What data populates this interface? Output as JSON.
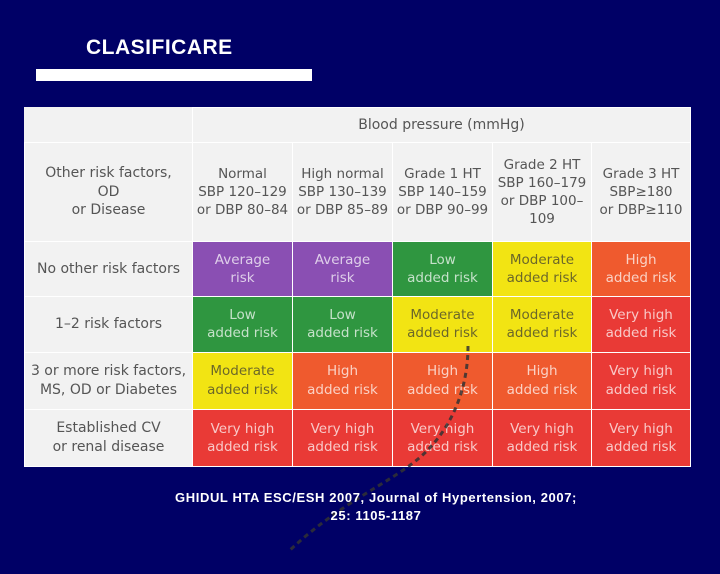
{
  "title": "CLASIFICARE",
  "table": {
    "header_label": "Blood pressure (mmHg)",
    "corner": [
      "Other risk factors,",
      "OD",
      "or Disease"
    ],
    "columns": [
      {
        "name": "Normal",
        "l1": "SBP 120–129",
        "l2": "or DBP 80–84"
      },
      {
        "name": "High normal",
        "l1": "SBP 130–139",
        "l2": "or DBP 85–89"
      },
      {
        "name": "Grade 1 HT",
        "l1": "SBP 140–159",
        "l2": "or DBP 90–99"
      },
      {
        "name": "Grade 2 HT",
        "l1": "SBP 160–179",
        "l2": "or DBP 100–109"
      },
      {
        "name": "Grade 3 HT",
        "l1": "SBP≥180",
        "l2": "or DBP≥110"
      }
    ],
    "rows": [
      {
        "label": [
          "No other risk factors"
        ],
        "cells": [
          [
            "Average",
            "risk"
          ],
          [
            "Average",
            "risk"
          ],
          [
            "Low",
            "added risk"
          ],
          [
            "Moderate",
            "added risk"
          ],
          [
            "High",
            "added risk"
          ]
        ]
      },
      {
        "label": [
          "1–2 risk factors"
        ],
        "cells": [
          [
            "Low",
            "added risk"
          ],
          [
            "Low",
            "added risk"
          ],
          [
            "Moderate",
            "added risk"
          ],
          [
            "Moderate",
            "added risk"
          ],
          [
            "Very high",
            "added risk"
          ]
        ]
      },
      {
        "label": [
          "3 or more risk factors,",
          "MS, OD or Diabetes"
        ],
        "cells": [
          [
            "Moderate",
            "added risk"
          ],
          [
            "High",
            "added risk"
          ],
          [
            "High",
            "added risk"
          ],
          [
            "High",
            "added risk"
          ],
          [
            "Very high",
            "added risk"
          ]
        ]
      },
      {
        "label": [
          "Established CV",
          "or renal disease"
        ],
        "cells": [
          [
            "Very high",
            "added risk"
          ],
          [
            "Very high",
            "added risk"
          ],
          [
            "Very high",
            "added risk"
          ],
          [
            "Very high",
            "added risk"
          ],
          [
            "Very high",
            "added risk"
          ]
        ]
      }
    ],
    "colors": {
      "average": "#8a4fb3",
      "low": "#2f9640",
      "moderate": "#f2e413",
      "high": "#ef5a2e",
      "very_high": "#e93a36"
    }
  },
  "caption": {
    "line1": "GHIDUL HTA ESC/ESH 2007, Journal of Hypertension, 2007;",
    "line2": "25: 1105-1187"
  }
}
